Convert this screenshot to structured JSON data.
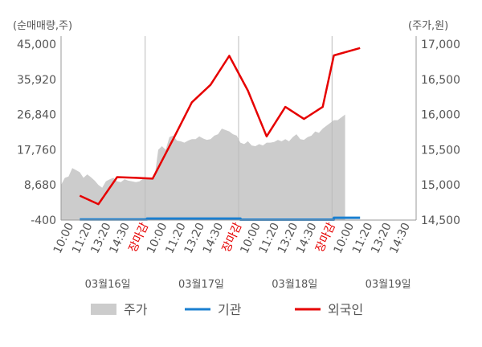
{
  "chart_data": {
    "type": "line",
    "y_left_label": "(순매매량,주)",
    "y_right_label": "(주가,원)",
    "y_left_ticks": [
      "45,000",
      "35,920",
      "26,840",
      "17,760",
      "8,680",
      "-400"
    ],
    "y_right_ticks": [
      "17,000",
      "16,500",
      "16,000",
      "15,500",
      "15,000",
      "14,500"
    ],
    "y_left_range": [
      -400,
      45000
    ],
    "y_right_range": [
      14500,
      17000
    ],
    "x_tick_labels": [
      "10:00",
      "11:20",
      "13:20",
      "14:30",
      "장마감",
      "10:00",
      "11:20",
      "13:20",
      "14:30",
      "장마감",
      "10:00",
      "11:20",
      "13:20",
      "14:30",
      "장마감",
      "10:00",
      "11:20",
      "13:20",
      "14:30"
    ],
    "x_tick_colors": [
      "#555555",
      "#555555",
      "#555555",
      "#555555",
      "#e60000",
      "#555555",
      "#555555",
      "#555555",
      "#555555",
      "#e60000",
      "#555555",
      "#555555",
      "#555555",
      "#555555",
      "#e60000",
      "#555555",
      "#555555",
      "#555555",
      "#555555"
    ],
    "day_labels": [
      "03월16일",
      "03월17일",
      "03월18일",
      "03월19일"
    ],
    "legend": [
      {
        "name": "주가",
        "color": "#cccccc",
        "symbol": "area"
      },
      {
        "name": "기관",
        "color": "#1a7fd0",
        "symbol": "line"
      },
      {
        "name": "외국인",
        "color": "#e60000",
        "symbol": "line"
      }
    ],
    "series": [
      {
        "name": "외국인",
        "axis": "left",
        "color": "#e60000",
        "x": [
          1,
          2,
          3,
          4,
          4.9,
          6,
          7,
          8,
          9,
          10,
          11,
          12,
          13,
          14,
          14.6,
          16
        ],
        "values": [
          5900,
          3700,
          10700,
          10500,
          10300,
          20500,
          30000,
          34500,
          42000,
          33000,
          21200,
          28800,
          25700,
          28800,
          42100,
          44000
        ]
      },
      {
        "name": "기관",
        "axis": "left",
        "color": "#1a7fd0",
        "x": [
          1,
          4.6,
          4.6,
          9.6,
          9.6,
          14.6,
          14.6,
          16
        ],
        "values": [
          -250,
          -250,
          0,
          0,
          -300,
          -300,
          200,
          200
        ]
      },
      {
        "name": "주가",
        "axis": "right",
        "color": "#cccccc",
        "x": [
          0,
          0.2,
          0.4,
          0.6,
          0.8,
          1.0,
          1.2,
          1.4,
          1.6,
          1.8,
          2.0,
          2.2,
          2.4,
          2.6,
          2.8,
          3.0,
          3.2,
          3.4,
          3.6,
          3.8,
          4.0,
          4.2,
          4.4,
          4.6,
          4.8,
          5.0,
          5.2,
          5.4,
          5.6,
          5.8,
          6.0,
          6.2,
          6.4,
          6.6,
          6.8,
          7.0,
          7.2,
          7.4,
          7.6,
          7.8,
          8.0,
          8.2,
          8.4,
          8.6,
          8.8,
          9.0,
          9.2,
          9.4,
          9.6,
          9.8,
          10.0,
          10.2,
          10.4,
          10.6,
          10.8,
          11.0,
          11.2,
          11.4,
          11.6,
          11.8,
          12.0,
          12.2,
          12.4,
          12.6,
          12.8,
          13.0,
          13.2,
          13.4,
          13.6,
          13.8,
          14.0,
          14.2,
          14.4,
          14.6,
          14.8,
          15.0,
          15.2
        ],
        "values": [
          15000,
          15100,
          15120,
          15240,
          15210,
          15180,
          15100,
          15150,
          15110,
          15060,
          15000,
          14960,
          15050,
          15080,
          15100,
          15050,
          15040,
          15080,
          15060,
          15050,
          15040,
          15050,
          15090,
          15100,
          15100,
          15100,
          15500,
          15550,
          15500,
          15680,
          15700,
          15630,
          15620,
          15600,
          15630,
          15650,
          15650,
          15690,
          15660,
          15640,
          15650,
          15700,
          15720,
          15800,
          15780,
          15760,
          15720,
          15700,
          15600,
          15580,
          15620,
          15560,
          15550,
          15580,
          15560,
          15600,
          15600,
          15610,
          15640,
          15620,
          15650,
          15620,
          15680,
          15720,
          15650,
          15640,
          15680,
          15700,
          15760,
          15740,
          15800,
          15840,
          15880,
          15920,
          15920,
          15960,
          16000
        ]
      }
    ]
  }
}
